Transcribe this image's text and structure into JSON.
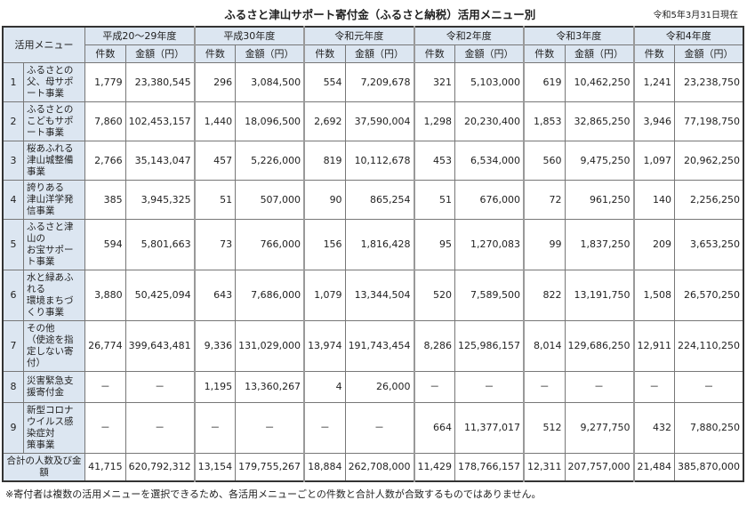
{
  "title": "ふるさと津山サポート寄付金（ふるさと納税）活用メニュー別",
  "as_of": "令和5年3月31日現在",
  "menu_header": "活用メニュー",
  "periods": [
    "平成20～29年度",
    "平成30年度",
    "令和元年度",
    "令和2年度",
    "令和3年度",
    "令和4年度"
  ],
  "sub_headers": {
    "count": "件数",
    "amount": "金額（円）"
  },
  "rows": [
    {
      "no": "1",
      "menu": [
        "ふるさとの",
        "父、母サポート事業"
      ],
      "values": [
        "1,779",
        "23,380,545",
        "296",
        "3,084,500",
        "554",
        "7,209,678",
        "321",
        "5,103,000",
        "619",
        "10,462,250",
        "1,241",
        "23,238,750"
      ]
    },
    {
      "no": "2",
      "menu": [
        "ふるさとの",
        "こどもサポート事業"
      ],
      "values": [
        "7,860",
        "102,453,157",
        "1,440",
        "18,096,500",
        "2,692",
        "37,590,004",
        "1,298",
        "20,230,400",
        "1,853",
        "32,865,250",
        "3,946",
        "77,198,750"
      ]
    },
    {
      "no": "3",
      "menu": [
        "桜あふれる",
        "津山城整備事業"
      ],
      "values": [
        "2,766",
        "35,143,047",
        "457",
        "5,226,000",
        "819",
        "10,112,678",
        "453",
        "6,534,000",
        "560",
        "9,475,250",
        "1,097",
        "20,962,250"
      ]
    },
    {
      "no": "4",
      "menu": [
        "誇りある",
        "津山洋学発信事業"
      ],
      "values": [
        "385",
        "3,945,325",
        "51",
        "507,000",
        "90",
        "865,254",
        "51",
        "676,000",
        "72",
        "961,250",
        "140",
        "2,256,250"
      ]
    },
    {
      "no": "5",
      "menu": [
        "ふるさと津山の",
        "お宝サポート事業"
      ],
      "values": [
        "594",
        "5,801,663",
        "73",
        "766,000",
        "156",
        "1,816,428",
        "95",
        "1,270,083",
        "99",
        "1,837,250",
        "209",
        "3,653,250"
      ]
    },
    {
      "no": "6",
      "menu": [
        "水と緑あふれる",
        "環境まちづくり事業"
      ],
      "values": [
        "3,880",
        "50,425,094",
        "643",
        "7,686,000",
        "1,079",
        "13,344,504",
        "520",
        "7,589,500",
        "822",
        "13,191,750",
        "1,508",
        "26,570,250"
      ]
    },
    {
      "no": "7",
      "menu": [
        "その他",
        "（使途を指定しない寄付）"
      ],
      "values": [
        "26,774",
        "399,643,481",
        "9,336",
        "131,029,000",
        "13,974",
        "191,743,454",
        "8,286",
        "125,986,157",
        "8,014",
        "129,686,250",
        "12,911",
        "224,110,250"
      ]
    },
    {
      "no": "8",
      "menu": [
        "災害緊急支援寄付金"
      ],
      "values": [
        "－",
        "－",
        "1,195",
        "13,360,267",
        "4",
        "26,000",
        "－",
        "－",
        "－",
        "－",
        "－",
        "－"
      ]
    },
    {
      "no": "9",
      "menu": [
        "新型コロナウイルス感染症対",
        "策事業"
      ],
      "values": [
        "－",
        "－",
        "－",
        "－",
        "－",
        "－",
        "664",
        "11,377,017",
        "512",
        "9,277,750",
        "432",
        "7,880,250"
      ]
    }
  ],
  "total": {
    "label": "合計の人数及び金額",
    "values": [
      "41,715",
      "620,792,312",
      "13,154",
      "179,755,267",
      "18,884",
      "262,708,000",
      "11,429",
      "178,766,157",
      "12,311",
      "207,757,000",
      "21,484",
      "385,870,000"
    ]
  },
  "note": "※寄付者は複数の活用メニューを選択できるため、各活用メニューごとの件数と合計人数が合致するものではありません。"
}
